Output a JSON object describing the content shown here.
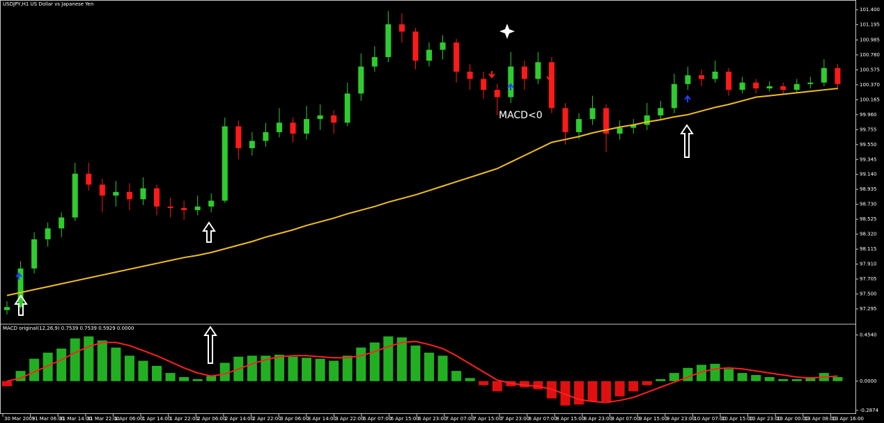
{
  "chart_data": {
    "type": "candlestick",
    "title": "USDJPY,H1  US Dollar vs Japanese Yen",
    "annotation": "MACD<0",
    "up_color": "#2ecc2e",
    "down_color": "#ff1a1a",
    "ylim": [
      97.095,
      101.533
    ],
    "yticks": [
      {
        "value": 101.4,
        "label": "101.400"
      },
      101.195,
      100.985,
      {
        "value": 100.78,
        "label": "100.780"
      },
      100.575,
      {
        "value": 100.37,
        "label": "100.370"
      },
      100.165,
      {
        "value": 99.96,
        "label": "99.960"
      },
      99.755,
      {
        "value": 99.55,
        "label": "99.550"
      },
      99.345,
      {
        "value": 99.14,
        "label": "99.140"
      },
      98.935,
      {
        "value": 98.73,
        "label": "98.730"
      },
      98.525,
      {
        "value": 98.32,
        "label": "98.320"
      },
      98.115,
      {
        "value": 97.91,
        "label": "97.910"
      },
      97.705,
      {
        "value": 97.5,
        "label": "97.500"
      },
      97.295
    ],
    "x_labels": [
      "30 Mar 2009",
      "31 Mar 06:00",
      "31 Mar 14:00",
      "31 Mar 22:00",
      "1 Apr 06:00",
      "1 Apr 14:00",
      "1 Apr 22:00",
      "2 Apr 06:00",
      "2 Apr 14:00",
      "2 Apr 22:00",
      "3 Apr 06:00",
      "3 Apr 14:00",
      "3 Apr 22:00",
      "6 Apr 07:00",
      "6 Apr 15:00",
      "6 Apr 23:00",
      "7 Apr 07:00",
      "7 Apr 15:00",
      "7 Apr 23:00",
      "8 Apr 07:00",
      "8 Apr 15:00",
      "8 Apr 23:00",
      "9 Apr 07:00",
      "9 Apr 15:00",
      "9 Apr 23:00",
      "10 Apr 07:00",
      "10 Apr 15:00",
      "10 Apr 23:00",
      "13 Apr 00:00",
      "13 Apr 08:00",
      "13 Apr 16:00"
    ],
    "ohlc": [
      [
        97.28,
        97.4,
        97.22,
        97.32
      ],
      [
        97.32,
        97.95,
        97.3,
        97.85
      ],
      [
        97.85,
        98.35,
        97.78,
        98.25
      ],
      [
        98.25,
        98.48,
        98.15,
        98.4
      ],
      [
        98.4,
        98.62,
        98.28,
        98.55
      ],
      [
        98.55,
        99.3,
        98.5,
        99.15
      ],
      [
        99.15,
        99.3,
        98.92,
        99.0
      ],
      [
        99.0,
        99.08,
        98.62,
        98.85
      ],
      [
        98.85,
        99.05,
        98.7,
        98.9
      ],
      [
        98.9,
        99.02,
        98.65,
        98.8
      ],
      [
        98.8,
        99.1,
        98.72,
        98.95
      ],
      [
        98.95,
        99.0,
        98.58,
        98.7
      ],
      [
        98.7,
        98.82,
        98.55,
        98.68
      ],
      [
        98.68,
        98.78,
        98.52,
        98.65
      ],
      [
        98.65,
        98.85,
        98.58,
        98.7
      ],
      [
        98.7,
        98.88,
        98.62,
        98.78
      ],
      [
        98.78,
        99.92,
        98.75,
        99.8
      ],
      [
        99.8,
        99.88,
        99.35,
        99.5
      ],
      [
        99.5,
        99.72,
        99.4,
        99.6
      ],
      [
        99.6,
        99.85,
        99.52,
        99.72
      ],
      [
        99.72,
        100.05,
        99.65,
        99.85
      ],
      [
        99.85,
        99.92,
        99.58,
        99.7
      ],
      [
        99.7,
        100.08,
        99.62,
        99.9
      ],
      [
        99.9,
        100.1,
        99.75,
        99.95
      ],
      [
        99.95,
        100.02,
        99.7,
        99.85
      ],
      [
        99.85,
        100.4,
        99.8,
        100.25
      ],
      [
        100.25,
        100.8,
        100.15,
        100.62
      ],
      [
        100.62,
        100.9,
        100.55,
        100.75
      ],
      [
        100.75,
        101.38,
        100.68,
        101.2
      ],
      [
        101.2,
        101.35,
        100.95,
        101.1
      ],
      [
        101.1,
        101.15,
        100.58,
        100.7
      ],
      [
        100.7,
        100.95,
        100.62,
        100.85
      ],
      [
        100.85,
        101.05,
        100.72,
        100.95
      ],
      [
        100.95,
        101.0,
        100.4,
        100.55
      ],
      [
        100.55,
        100.65,
        100.3,
        100.45
      ],
      [
        100.45,
        100.55,
        100.18,
        100.3
      ],
      [
        100.3,
        100.38,
        99.95,
        100.2
      ],
      [
        100.2,
        100.82,
        100.12,
        100.62
      ],
      [
        100.62,
        100.7,
        100.3,
        100.45
      ],
      [
        100.45,
        100.82,
        100.38,
        100.68
      ],
      [
        100.68,
        100.75,
        99.98,
        100.05
      ],
      [
        100.05,
        100.12,
        99.55,
        99.72
      ],
      [
        99.72,
        99.98,
        99.62,
        99.9
      ],
      [
        99.9,
        100.22,
        99.82,
        100.05
      ],
      [
        100.05,
        100.1,
        99.45,
        99.7
      ],
      [
        99.7,
        99.88,
        99.62,
        99.78
      ],
      [
        99.78,
        99.9,
        99.7,
        99.82
      ],
      [
        99.82,
        100.12,
        99.75,
        99.95
      ],
      [
        99.95,
        100.15,
        99.88,
        100.05
      ],
      [
        100.05,
        100.52,
        99.98,
        100.38
      ],
      [
        100.38,
        100.62,
        100.3,
        100.5
      ],
      [
        100.5,
        100.58,
        100.35,
        100.45
      ],
      [
        100.45,
        100.7,
        100.4,
        100.55
      ],
      [
        100.55,
        100.6,
        100.22,
        100.3
      ],
      [
        100.3,
        100.48,
        100.25,
        100.4
      ],
      [
        100.4,
        100.45,
        100.25,
        100.32
      ],
      [
        100.32,
        100.42,
        100.28,
        100.35
      ],
      [
        100.35,
        100.4,
        100.24,
        100.3
      ],
      [
        100.3,
        100.45,
        100.26,
        100.38
      ],
      [
        100.38,
        100.48,
        100.32,
        100.4
      ],
      [
        100.4,
        100.72,
        100.35,
        100.6
      ],
      [
        100.6,
        100.65,
        100.3,
        100.38
      ]
    ],
    "moving_average": {
      "color": "#f0c020",
      "values": [
        97.48,
        97.52,
        97.56,
        97.6,
        97.64,
        97.68,
        97.72,
        97.76,
        97.8,
        97.84,
        97.88,
        97.92,
        97.96,
        98.0,
        98.03,
        98.07,
        98.12,
        98.17,
        98.22,
        98.28,
        98.33,
        98.38,
        98.44,
        98.49,
        98.54,
        98.6,
        98.65,
        98.7,
        98.76,
        98.81,
        98.86,
        98.92,
        98.98,
        99.04,
        99.1,
        99.16,
        99.22,
        99.31,
        99.4,
        99.49,
        99.58,
        99.62,
        99.66,
        99.71,
        99.75,
        99.79,
        99.82,
        99.86,
        99.89,
        99.93,
        99.96,
        100.01,
        100.06,
        100.1,
        100.15,
        100.2,
        100.22,
        100.24,
        100.26,
        100.28,
        100.3,
        100.32
      ]
    },
    "macd": {
      "label": "MACD original(12,26,9) 0.7539 0.7539 0.5929 0.0000",
      "ylim": [
        -0.323,
        0.553
      ],
      "yticks": [
        {
          "value": 0.454,
          "label": "0.4540"
        },
        {
          "value": 0,
          "label": "0.0000"
        },
        -0.2874
      ],
      "up_color": "#22b022",
      "down_color": "#e01010",
      "signal_color": "#ff2020",
      "histogram": [
        -0.05,
        0.1,
        0.22,
        0.28,
        0.32,
        0.42,
        0.44,
        0.4,
        0.33,
        0.25,
        0.2,
        0.15,
        0.08,
        0.04,
        0.02,
        0.05,
        0.18,
        0.24,
        0.25,
        0.25,
        0.26,
        0.24,
        0.23,
        0.22,
        0.2,
        0.25,
        0.33,
        0.38,
        0.44,
        0.43,
        0.35,
        0.28,
        0.25,
        0.1,
        0.03,
        -0.04,
        -0.1,
        -0.05,
        -0.06,
        -0.08,
        -0.17,
        -0.24,
        -0.23,
        -0.2,
        -0.2,
        -0.15,
        -0.1,
        -0.04,
        0.02,
        0.08,
        0.13,
        0.16,
        0.17,
        0.12,
        0.08,
        0.06,
        0.04,
        0.02,
        0.02,
        0.04,
        0.08,
        0.04
      ],
      "signal": [
        0.0,
        0.03,
        0.09,
        0.15,
        0.21,
        0.28,
        0.34,
        0.38,
        0.38,
        0.35,
        0.3,
        0.25,
        0.19,
        0.13,
        0.08,
        0.05,
        0.07,
        0.12,
        0.17,
        0.21,
        0.24,
        0.25,
        0.25,
        0.24,
        0.23,
        0.23,
        0.25,
        0.29,
        0.34,
        0.38,
        0.39,
        0.36,
        0.32,
        0.25,
        0.17,
        0.09,
        0.01,
        -0.02,
        -0.04,
        -0.05,
        -0.08,
        -0.13,
        -0.18,
        -0.2,
        -0.21,
        -0.19,
        -0.16,
        -0.11,
        -0.06,
        -0.01,
        0.04,
        0.09,
        0.12,
        0.13,
        0.12,
        0.1,
        0.08,
        0.06,
        0.04,
        0.03,
        0.04,
        0.05
      ]
    }
  }
}
